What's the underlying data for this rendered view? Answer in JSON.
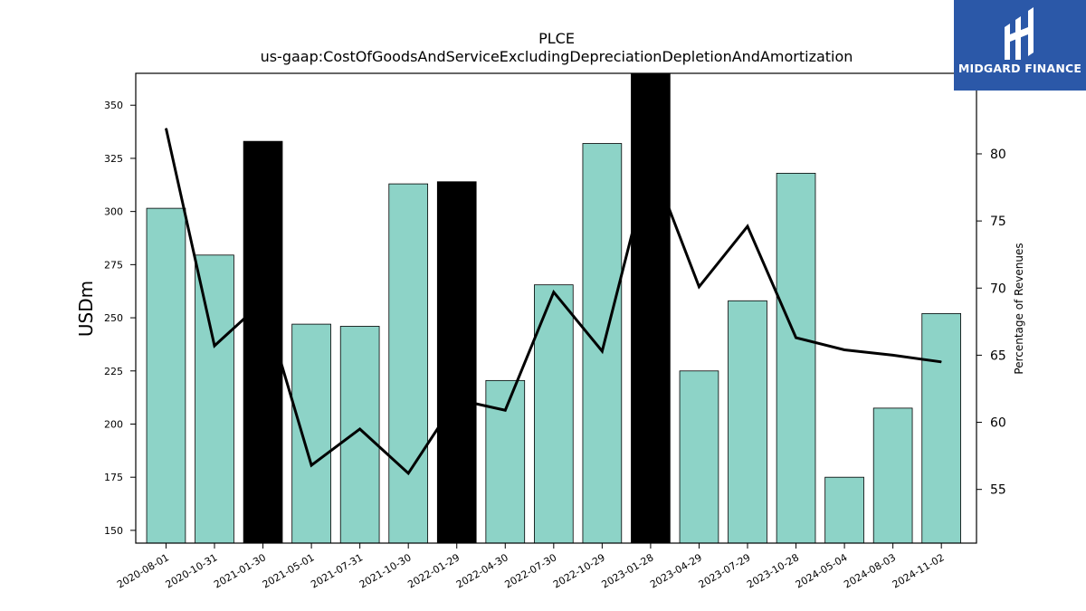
{
  "chart_data": {
    "type": "bar",
    "title": "PLCE",
    "subtitle": "us-gaap:CostOfGoodsAndServiceExcludingDepreciationDepletionAndAmortization",
    "ylabel": "USDm",
    "y2label": "Percentage of Revenues",
    "categories": [
      "2020-08-01",
      "2020-10-31",
      "2021-01-30",
      "2021-05-01",
      "2021-07-31",
      "2021-10-30",
      "2022-01-29",
      "2022-04-30",
      "2022-07-30",
      "2022-10-29",
      "2023-01-28",
      "2023-04-29",
      "2023-07-29",
      "2023-10-28",
      "2024-05-04",
      "2024-08-03",
      "2024-11-02"
    ],
    "series": [
      {
        "type": "bar",
        "values": [
          301.5,
          279.5,
          333,
          247,
          246,
          313,
          314,
          220.5,
          265.5,
          332,
          365,
          225,
          258,
          318,
          175,
          207.5,
          252
        ],
        "highlight": [
          false,
          false,
          true,
          false,
          false,
          false,
          true,
          false,
          false,
          false,
          true,
          false,
          false,
          false,
          false,
          false,
          false
        ],
        "color": "#8dd3c7",
        "highlight_color": "#000000"
      },
      {
        "type": "line",
        "axis": "right",
        "values": [
          81.9,
          65.7,
          69.0,
          56.8,
          59.5,
          56.2,
          61.7,
          60.9,
          69.7,
          65.3,
          79.5,
          70.1,
          74.6,
          66.3,
          65.4,
          65.0,
          64.5
        ],
        "color": "#000000"
      }
    ],
    "ylim": [
      144,
      365
    ],
    "yticks": [
      150,
      175,
      200,
      225,
      250,
      275,
      300,
      325,
      350
    ],
    "y2lim": [
      51,
      86
    ],
    "y2ticks": [
      55,
      60,
      65,
      70,
      75,
      80
    ],
    "grid": false,
    "legend": "none"
  },
  "logo": {
    "text": "MIDGARD FINANCE",
    "background": "#2b58a8"
  }
}
